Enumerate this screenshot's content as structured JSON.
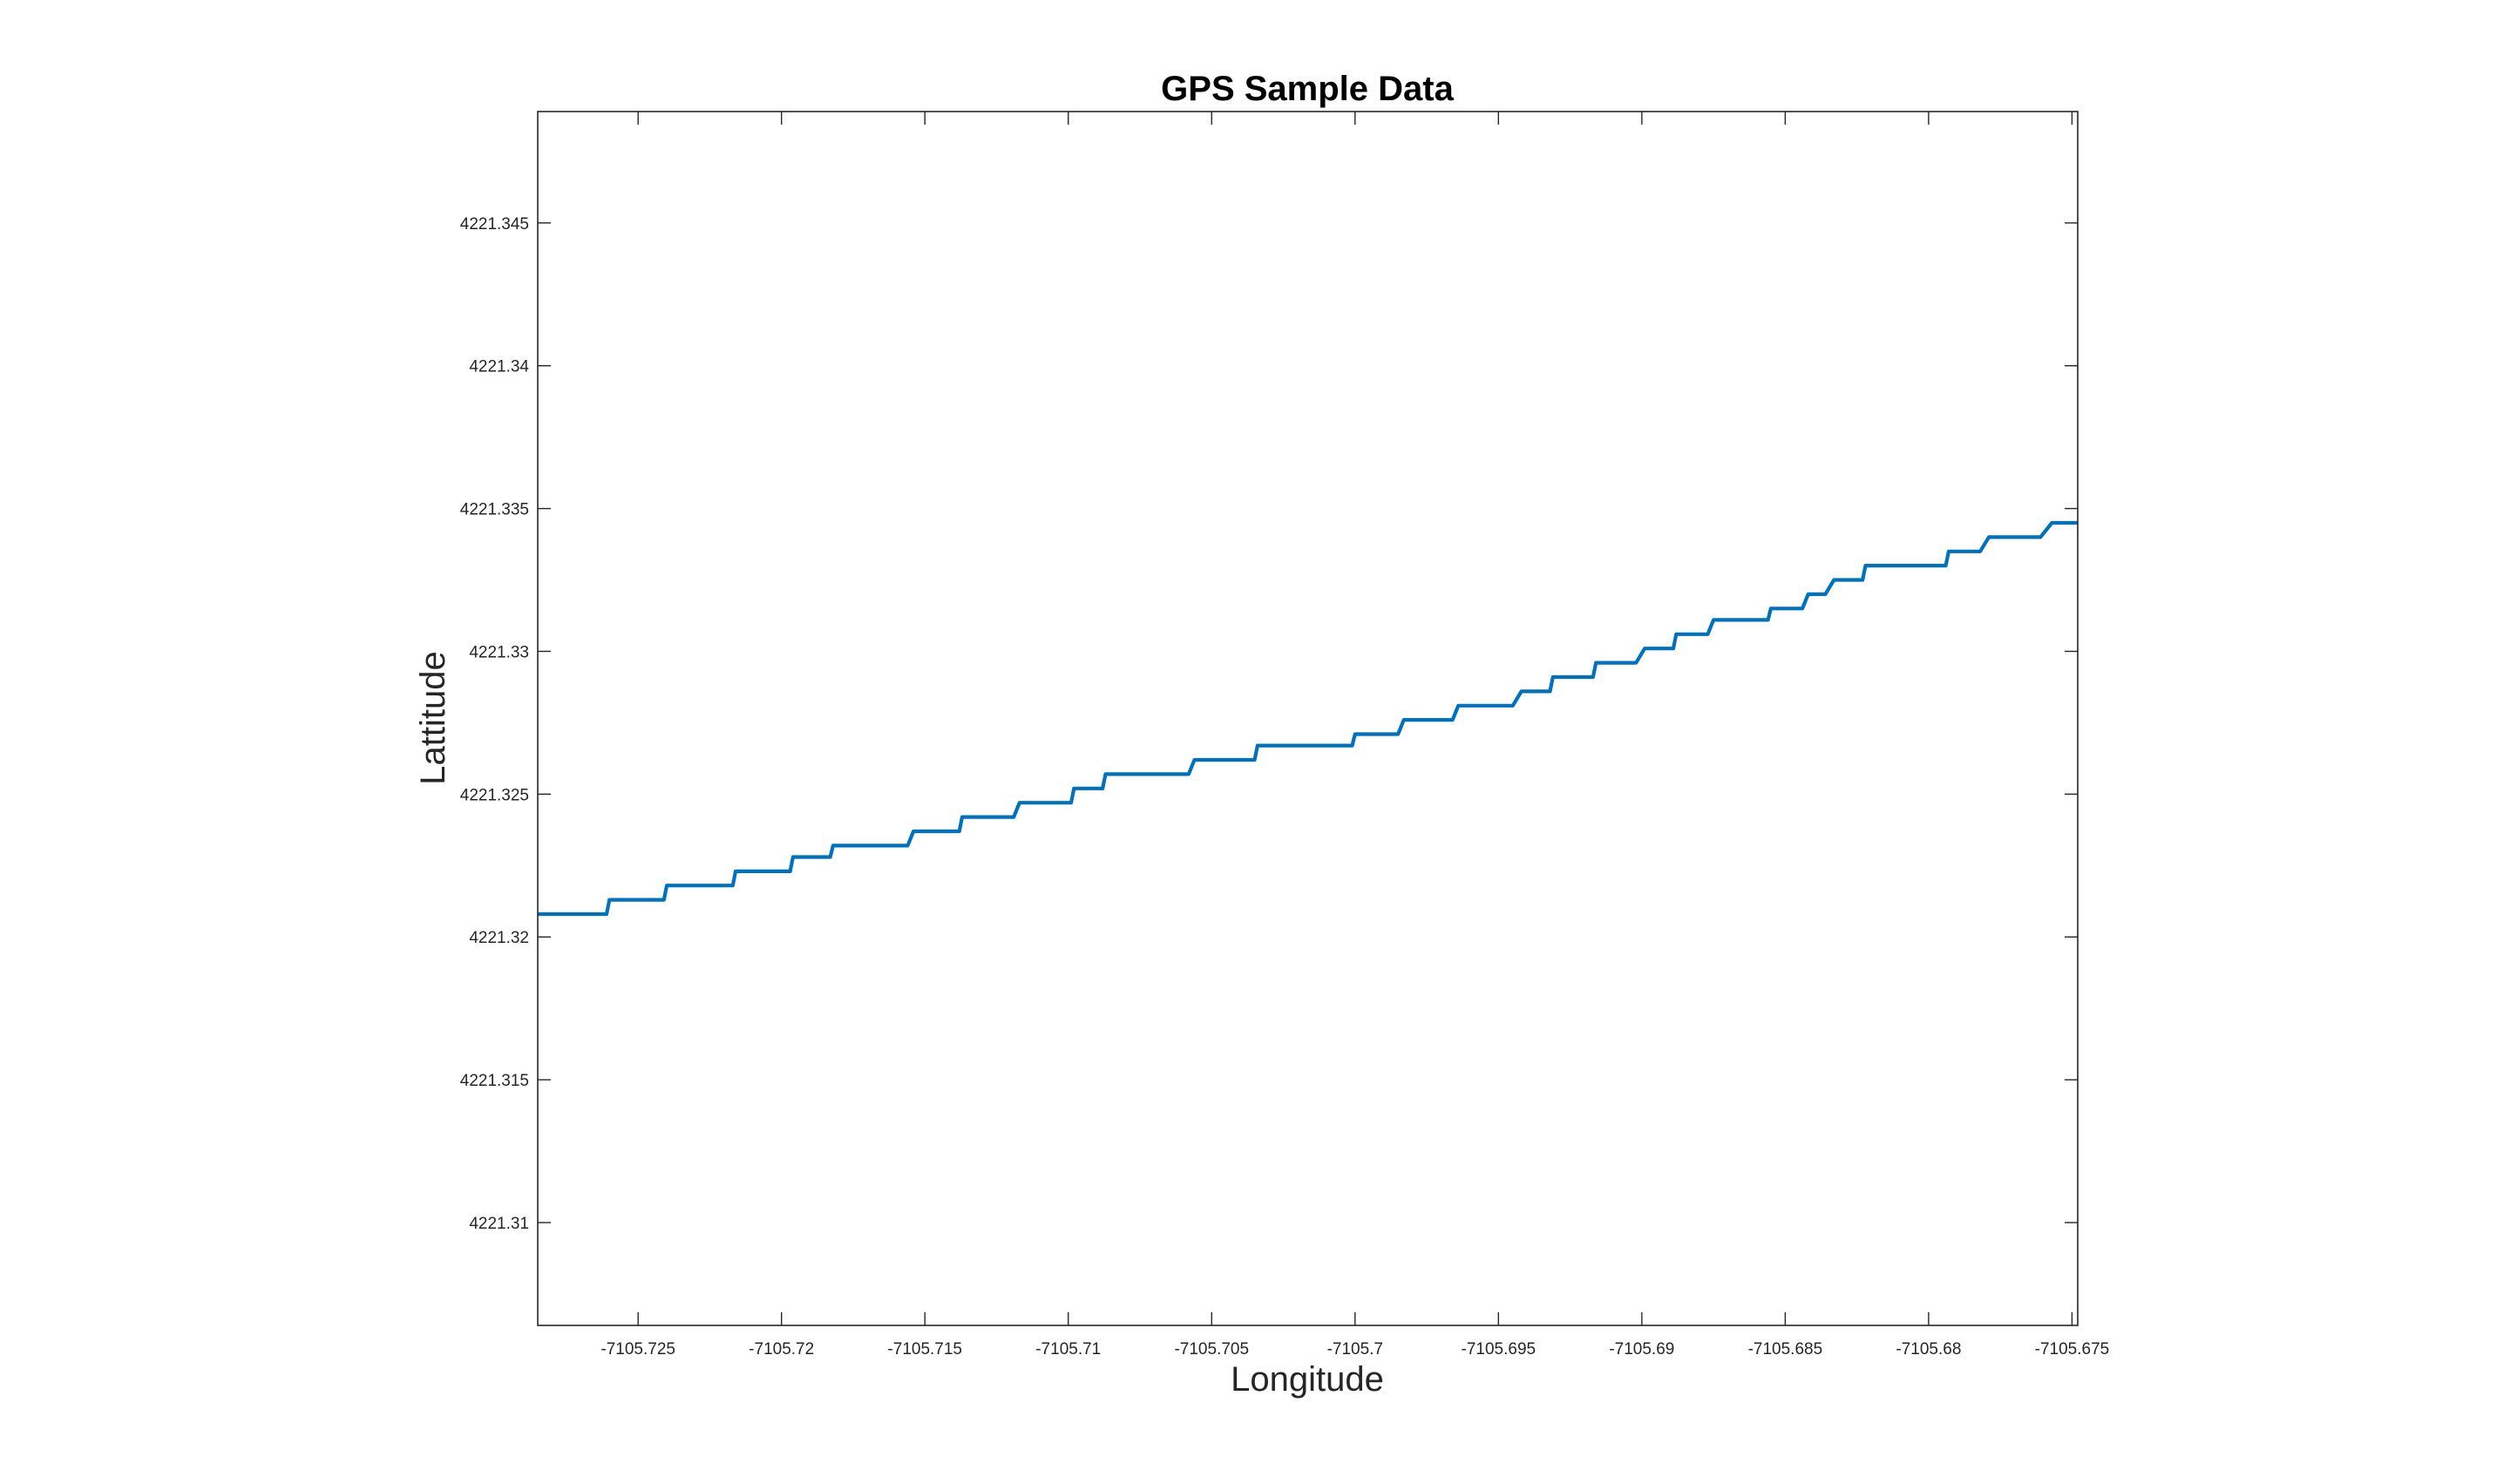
{
  "chart_data": {
    "type": "line",
    "title": "GPS Sample Data",
    "xlabel": "Longitude",
    "ylabel": "Lattitude",
    "xlim": [
      -7105.7285,
      -7105.6748
    ],
    "ylim": [
      4221.3064,
      4221.3489
    ],
    "xticks": [
      {
        "value": -7105.725,
        "label": "-7105.725"
      },
      {
        "value": -7105.72,
        "label": "-7105.72"
      },
      {
        "value": -7105.715,
        "label": "-7105.715"
      },
      {
        "value": -7105.71,
        "label": "-7105.71"
      },
      {
        "value": -7105.705,
        "label": "-7105.705"
      },
      {
        "value": -7105.7,
        "label": "-7105.7"
      },
      {
        "value": -7105.695,
        "label": "-7105.695"
      },
      {
        "value": -7105.69,
        "label": "-7105.69"
      },
      {
        "value": -7105.685,
        "label": "-7105.685"
      },
      {
        "value": -7105.68,
        "label": "-7105.68"
      },
      {
        "value": -7105.675,
        "label": "-7105.675"
      }
    ],
    "yticks": [
      {
        "value": 4221.31,
        "label": "4221.31"
      },
      {
        "value": 4221.315,
        "label": "4221.315"
      },
      {
        "value": 4221.32,
        "label": "4221.32"
      },
      {
        "value": 4221.325,
        "label": "4221.325"
      },
      {
        "value": 4221.33,
        "label": "4221.33"
      },
      {
        "value": 4221.335,
        "label": "4221.335"
      },
      {
        "value": 4221.34,
        "label": "4221.34"
      },
      {
        "value": 4221.345,
        "label": "4221.345"
      }
    ],
    "grid": false,
    "legend": "none",
    "series": [
      {
        "color": "#0072BD",
        "x": [
          -7105.7285,
          -7105.7261,
          -7105.726,
          -7105.7241,
          -7105.724,
          -7105.7217,
          -7105.7216,
          -7105.7197,
          -7105.7196,
          -7105.7183,
          -7105.7182,
          -7105.7156,
          -7105.7154,
          -7105.7138,
          -7105.7137,
          -7105.7119,
          -7105.7117,
          -7105.7099,
          -7105.7098,
          -7105.7088,
          -7105.7087,
          -7105.7058,
          -7105.7056,
          -7105.7035,
          -7105.7034,
          -7105.7001,
          -7105.7,
          -7105.6985,
          -7105.6983,
          -7105.6966,
          -7105.6964,
          -7105.6945,
          -7105.6942,
          -7105.6932,
          -7105.6931,
          -7105.6917,
          -7105.6916,
          -7105.6902,
          -7105.6899,
          -7105.6889,
          -7105.6888,
          -7105.6877,
          -7105.6875,
          -7105.6856,
          -7105.6855,
          -7105.6844,
          -7105.6842,
          -7105.6836,
          -7105.6833,
          -7105.6823,
          -7105.6822,
          -7105.6794,
          -7105.6793,
          -7105.6782,
          -7105.6779,
          -7105.6761,
          -7105.6757,
          -7105.6752,
          -7105.6748
        ],
        "y": [
          4221.3208,
          4221.3208,
          4221.3213,
          4221.3213,
          4221.3218,
          4221.3218,
          4221.3223,
          4221.3223,
          4221.3228,
          4221.3228,
          4221.3232,
          4221.3232,
          4221.3237,
          4221.3237,
          4221.3242,
          4221.3242,
          4221.3247,
          4221.3247,
          4221.3252,
          4221.3252,
          4221.3257,
          4221.3257,
          4221.3262,
          4221.3262,
          4221.3267,
          4221.3267,
          4221.3271,
          4221.3271,
          4221.3276,
          4221.3276,
          4221.3281,
          4221.3281,
          4221.3286,
          4221.3286,
          4221.3291,
          4221.3291,
          4221.3296,
          4221.3296,
          4221.3301,
          4221.3301,
          4221.3306,
          4221.3306,
          4221.3311,
          4221.3311,
          4221.3315,
          4221.3315,
          4221.332,
          4221.332,
          4221.3325,
          4221.3325,
          4221.333,
          4221.333,
          4221.3335,
          4221.3335,
          4221.334,
          4221.334,
          4221.3345,
          4221.3345,
          4221.3345
        ]
      }
    ]
  }
}
